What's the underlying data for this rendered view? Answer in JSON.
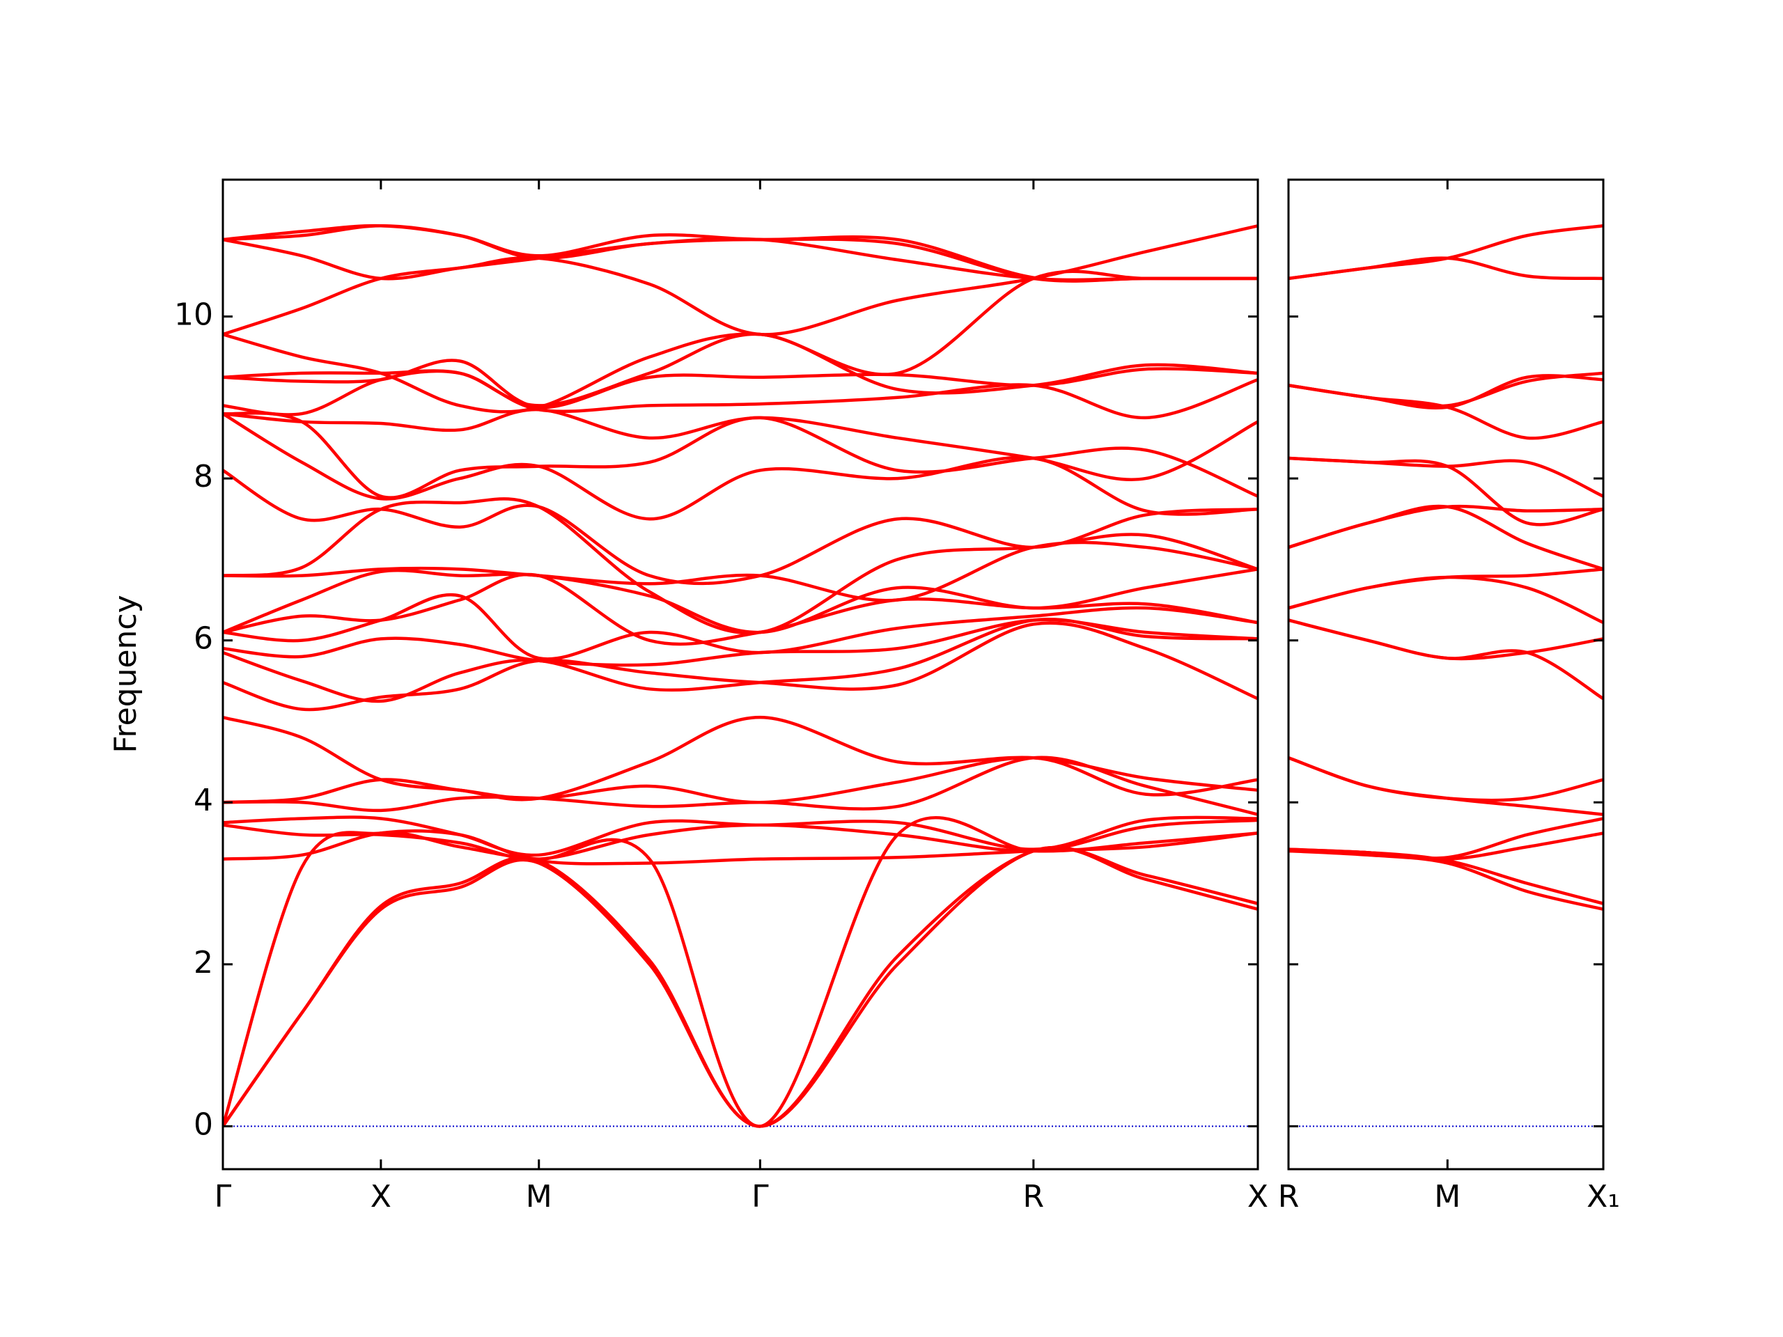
{
  "chart_data": [
    {
      "type": "line",
      "ylabel": "Frequency",
      "color": "#ff0000",
      "show_ytick_labels": true,
      "hlines": [
        0
      ],
      "hline_color": "#0000cc",
      "xlim": [
        0,
        6.55
      ],
      "ylim": [
        -0.53,
        11.69
      ],
      "yticks": [
        0,
        2,
        4,
        6,
        8,
        10
      ],
      "xticks": [
        {
          "value": 0,
          "label": "Γ"
        },
        {
          "value": 1,
          "label": "X"
        },
        {
          "value": 2,
          "label": "M"
        },
        {
          "value": 3.4,
          "label": "Γ"
        },
        {
          "value": 5.13,
          "label": "R"
        },
        {
          "value": 6.55,
          "label": "X"
        }
      ],
      "x": [
        0,
        0.5,
        1,
        1.5,
        2,
        2.7,
        3.4,
        4.27,
        5.13,
        5.84,
        6.55
      ],
      "series": [
        {
          "values": [
            0,
            1.4,
            2.68,
            2.95,
            3.25,
            2.0,
            0,
            2.0,
            3.4,
            3.05,
            2.68
          ]
        },
        {
          "values": [
            0,
            1.4,
            2.72,
            3.0,
            3.28,
            2.05,
            0,
            2.1,
            3.4,
            3.1,
            2.75
          ]
        },
        {
          "values": [
            0,
            3.2,
            3.62,
            3.45,
            3.3,
            3.3,
            0,
            3.6,
            3.4,
            3.5,
            3.62
          ]
        },
        {
          "values": [
            3.3,
            3.35,
            3.62,
            3.6,
            3.28,
            3.25,
            3.3,
            3.32,
            3.4,
            3.45,
            3.62
          ]
        },
        {
          "values": [
            3.72,
            3.6,
            3.6,
            3.5,
            3.3,
            3.6,
            3.72,
            3.6,
            3.4,
            3.7,
            3.78
          ]
        },
        {
          "values": [
            3.75,
            3.8,
            3.8,
            3.6,
            3.35,
            3.75,
            3.72,
            3.75,
            3.42,
            3.78,
            3.8
          ]
        },
        {
          "values": [
            4.0,
            4.0,
            3.9,
            4.05,
            4.05,
            3.95,
            4.0,
            3.95,
            4.55,
            4.2,
            3.85
          ]
        },
        {
          "values": [
            4.0,
            4.05,
            4.28,
            4.15,
            4.05,
            4.2,
            4.0,
            4.25,
            4.55,
            4.1,
            4.28
          ]
        },
        {
          "values": [
            5.05,
            4.8,
            4.28,
            4.15,
            4.05,
            4.5,
            5.05,
            4.5,
            4.55,
            4.3,
            4.15
          ]
        },
        {
          "values": [
            5.48,
            5.15,
            5.3,
            5.4,
            5.75,
            5.6,
            5.48,
            5.45,
            6.2,
            5.9,
            5.28
          ]
        },
        {
          "values": [
            5.85,
            5.5,
            5.25,
            5.6,
            5.75,
            5.4,
            5.48,
            5.65,
            6.25,
            6.05,
            6.02
          ]
        },
        {
          "values": [
            5.9,
            5.8,
            6.02,
            5.95,
            5.75,
            5.7,
            5.85,
            5.9,
            6.25,
            6.1,
            6.02
          ]
        },
        {
          "values": [
            6.1,
            6.0,
            6.25,
            6.55,
            5.78,
            6.1,
            5.85,
            6.15,
            6.3,
            6.4,
            6.22
          ]
        },
        {
          "values": [
            6.1,
            6.3,
            6.25,
            6.5,
            6.8,
            6.0,
            6.1,
            6.5,
            6.4,
            6.45,
            6.22
          ]
        },
        {
          "values": [
            6.1,
            6.5,
            6.85,
            6.8,
            6.8,
            6.55,
            6.1,
            6.65,
            6.4,
            6.65,
            6.88
          ]
        },
        {
          "values": [
            6.8,
            6.8,
            6.88,
            6.88,
            6.8,
            6.7,
            6.8,
            6.5,
            7.15,
            7.15,
            6.88
          ]
        },
        {
          "values": [
            6.8,
            6.9,
            7.62,
            7.7,
            7.65,
            6.6,
            6.1,
            7.0,
            7.15,
            7.3,
            6.88
          ]
        },
        {
          "values": [
            8.1,
            7.5,
            7.62,
            7.4,
            7.65,
            6.8,
            6.8,
            7.5,
            7.15,
            7.55,
            7.62
          ]
        },
        {
          "values": [
            8.8,
            8.2,
            7.75,
            8.0,
            8.15,
            7.5,
            8.1,
            8.0,
            8.25,
            7.6,
            7.62
          ]
        },
        {
          "values": [
            8.8,
            8.7,
            7.78,
            8.1,
            8.15,
            8.2,
            8.75,
            8.1,
            8.25,
            8.35,
            7.78
          ]
        },
        {
          "values": [
            8.8,
            8.7,
            8.68,
            8.6,
            8.85,
            8.5,
            8.75,
            8.5,
            8.25,
            8.0,
            8.7
          ]
        },
        {
          "values": [
            8.9,
            8.8,
            9.22,
            9.3,
            8.85,
            8.9,
            8.92,
            9.0,
            9.15,
            8.75,
            9.22
          ]
        },
        {
          "values": [
            9.25,
            9.2,
            9.22,
            9.45,
            8.88,
            9.25,
            9.25,
            9.28,
            9.15,
            9.35,
            9.3
          ]
        },
        {
          "values": [
            9.25,
            9.3,
            9.3,
            9.3,
            8.9,
            9.3,
            9.78,
            9.1,
            9.15,
            9.4,
            9.3
          ]
        },
        {
          "values": [
            9.78,
            9.5,
            9.3,
            8.9,
            8.88,
            9.5,
            9.78,
            9.3,
            10.47,
            10.47,
            10.47
          ]
        },
        {
          "values": [
            9.78,
            10.1,
            10.47,
            10.6,
            10.72,
            10.4,
            9.78,
            10.2,
            10.47,
            10.8,
            11.12
          ]
        },
        {
          "values": [
            10.95,
            10.75,
            10.47,
            10.6,
            10.72,
            10.9,
            10.95,
            10.7,
            10.47,
            10.47,
            10.47
          ]
        },
        {
          "values": [
            10.95,
            11.0,
            11.12,
            11.0,
            10.72,
            10.9,
            10.95,
            10.9,
            10.47,
            10.47,
            10.47
          ]
        },
        {
          "values": [
            10.95,
            11.05,
            11.12,
            11.0,
            10.75,
            11.0,
            10.95,
            10.95,
            10.48,
            10.47,
            10.47
          ]
        }
      ]
    },
    {
      "type": "line",
      "color": "#ff0000",
      "show_ytick_labels": false,
      "hlines": [
        0
      ],
      "hline_color": "#0000cc",
      "xlim": [
        0,
        1.98
      ],
      "ylim": [
        -0.53,
        11.69
      ],
      "yticks": [
        0,
        2,
        4,
        6,
        8,
        10
      ],
      "xticks": [
        {
          "value": 0,
          "label": "R"
        },
        {
          "value": 1,
          "label": "M"
        },
        {
          "value": 1.98,
          "label": "X₁"
        }
      ],
      "x": [
        0,
        0.5,
        1,
        1.5,
        1.98
      ],
      "series": [
        {
          "values": [
            3.4,
            3.35,
            3.25,
            2.9,
            2.68
          ]
        },
        {
          "values": [
            3.4,
            3.38,
            3.28,
            3.0,
            2.75
          ]
        },
        {
          "values": [
            3.42,
            3.38,
            3.3,
            3.45,
            3.62
          ]
        },
        {
          "values": [
            3.42,
            3.38,
            3.32,
            3.6,
            3.8
          ]
        },
        {
          "values": [
            4.55,
            4.2,
            4.05,
            3.95,
            3.85
          ]
        },
        {
          "values": [
            4.55,
            4.2,
            4.05,
            4.05,
            4.28
          ]
        },
        {
          "values": [
            6.25,
            6.0,
            5.78,
            5.85,
            5.28
          ]
        },
        {
          "values": [
            6.25,
            6.0,
            5.78,
            5.85,
            6.02
          ]
        },
        {
          "values": [
            6.4,
            6.65,
            6.78,
            6.65,
            6.22
          ]
        },
        {
          "values": [
            6.4,
            6.65,
            6.78,
            6.8,
            6.88
          ]
        },
        {
          "values": [
            7.15,
            7.45,
            7.65,
            7.2,
            6.88
          ]
        },
        {
          "values": [
            7.15,
            7.45,
            7.65,
            7.6,
            7.62
          ]
        },
        {
          "values": [
            8.25,
            8.2,
            8.15,
            7.45,
            7.62
          ]
        },
        {
          "values": [
            8.25,
            8.2,
            8.15,
            8.2,
            7.78
          ]
        },
        {
          "values": [
            9.15,
            9.0,
            8.88,
            8.5,
            8.7
          ]
        },
        {
          "values": [
            9.15,
            9.0,
            8.88,
            9.25,
            9.22
          ]
        },
        {
          "values": [
            9.15,
            9.0,
            8.9,
            9.2,
            9.3
          ]
        },
        {
          "values": [
            10.47,
            10.6,
            10.72,
            10.5,
            10.47
          ]
        },
        {
          "values": [
            10.47,
            10.6,
            10.72,
            11.0,
            11.12
          ]
        }
      ]
    }
  ]
}
